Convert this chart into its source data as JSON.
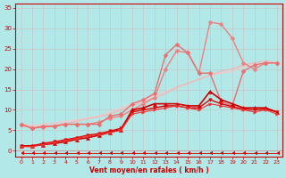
{
  "xlabel": "Vent moyen/en rafales ( km/h )",
  "xlim": [
    -0.5,
    23.5
  ],
  "ylim": [
    -1.5,
    36
  ],
  "yticks": [
    0,
    5,
    10,
    15,
    20,
    25,
    30,
    35
  ],
  "xticks": [
    0,
    1,
    2,
    3,
    4,
    5,
    6,
    7,
    8,
    9,
    10,
    11,
    12,
    13,
    14,
    15,
    16,
    17,
    18,
    19,
    20,
    21,
    22,
    23
  ],
  "background_color": "#b2e8e8",
  "grid_color": "#c8c8c8",
  "series": [
    {
      "y": [
        6.5,
        6.2,
        6.5,
        6.8,
        7.2,
        7.5,
        8.0,
        8.5,
        9.5,
        10.5,
        11.5,
        12.5,
        13.5,
        14.5,
        15.5,
        16.5,
        17.5,
        18.5,
        19.0,
        19.5,
        20.5,
        21.0,
        21.5,
        21.5
      ],
      "color": "#f5c8c8",
      "lw": 1.0,
      "marker": null,
      "ms": 0
    },
    {
      "y": [
        6.0,
        5.8,
        6.0,
        6.3,
        6.7,
        7.2,
        7.8,
        8.3,
        9.0,
        10.0,
        11.0,
        12.0,
        13.0,
        14.0,
        15.5,
        16.5,
        17.5,
        18.5,
        19.5,
        20.0,
        21.0,
        21.5,
        22.0,
        21.5
      ],
      "color": "#f0b8b8",
      "lw": 1.0,
      "marker": null,
      "ms": 0
    },
    {
      "y": [
        6.5,
        5.5,
        5.8,
        6.0,
        6.5,
        6.5,
        6.5,
        7.0,
        8.0,
        8.5,
        10.0,
        11.5,
        13.0,
        20.0,
        24.5,
        24.0,
        19.0,
        31.5,
        31.0,
        27.5,
        21.5,
        20.0,
        21.5,
        21.5
      ],
      "color": "#f08080",
      "lw": 1.0,
      "marker": "D",
      "ms": 2.5
    },
    {
      "y": [
        6.5,
        5.5,
        6.0,
        6.0,
        6.5,
        6.5,
        6.5,
        6.5,
        8.5,
        9.0,
        11.5,
        12.5,
        14.0,
        23.5,
        26.0,
        24.0,
        19.0,
        19.0,
        12.0,
        11.0,
        19.5,
        21.0,
        21.5,
        21.5
      ],
      "color": "#e87070",
      "lw": 1.0,
      "marker": "D",
      "ms": 2.5
    },
    {
      "y": [
        1.2,
        1.2,
        1.5,
        1.8,
        2.2,
        2.8,
        3.2,
        3.8,
        4.5,
        5.2,
        10.0,
        10.5,
        11.5,
        11.5,
        11.5,
        11.0,
        11.0,
        14.5,
        12.5,
        11.5,
        10.5,
        10.5,
        10.5,
        9.5
      ],
      "color": "#cc0000",
      "lw": 1.2,
      "marker": "^",
      "ms": 3
    },
    {
      "y": [
        1.2,
        1.2,
        1.8,
        2.2,
        2.7,
        3.2,
        3.8,
        4.2,
        4.8,
        5.5,
        9.5,
        10.0,
        10.5,
        11.0,
        11.0,
        10.5,
        10.5,
        12.5,
        11.5,
        10.8,
        10.2,
        10.0,
        10.2,
        9.5
      ],
      "color": "#dd0000",
      "lw": 1.0,
      "marker": "v",
      "ms": 2.5
    },
    {
      "y": [
        1.0,
        1.0,
        1.5,
        2.0,
        2.5,
        3.0,
        3.5,
        4.0,
        4.5,
        5.0,
        9.0,
        9.5,
        10.0,
        10.5,
        11.0,
        10.5,
        10.0,
        11.5,
        11.0,
        10.5,
        10.0,
        9.5,
        10.0,
        9.0
      ],
      "color": "#ee3333",
      "lw": 0.8,
      "marker": ">",
      "ms": 2.5
    },
    {
      "y": [
        -0.5,
        -0.5,
        -0.5,
        -0.5,
        -0.5,
        -0.5,
        -0.5,
        -0.5,
        -0.5,
        -0.5,
        -0.5,
        -0.5,
        -0.5,
        -0.5,
        -0.5,
        -0.5,
        -0.5,
        -0.5,
        -0.5,
        -0.5,
        -0.5,
        -0.5,
        -0.5,
        -0.5
      ],
      "color": "#cc0000",
      "lw": 0.6,
      "marker": 4,
      "ms": 3
    }
  ]
}
